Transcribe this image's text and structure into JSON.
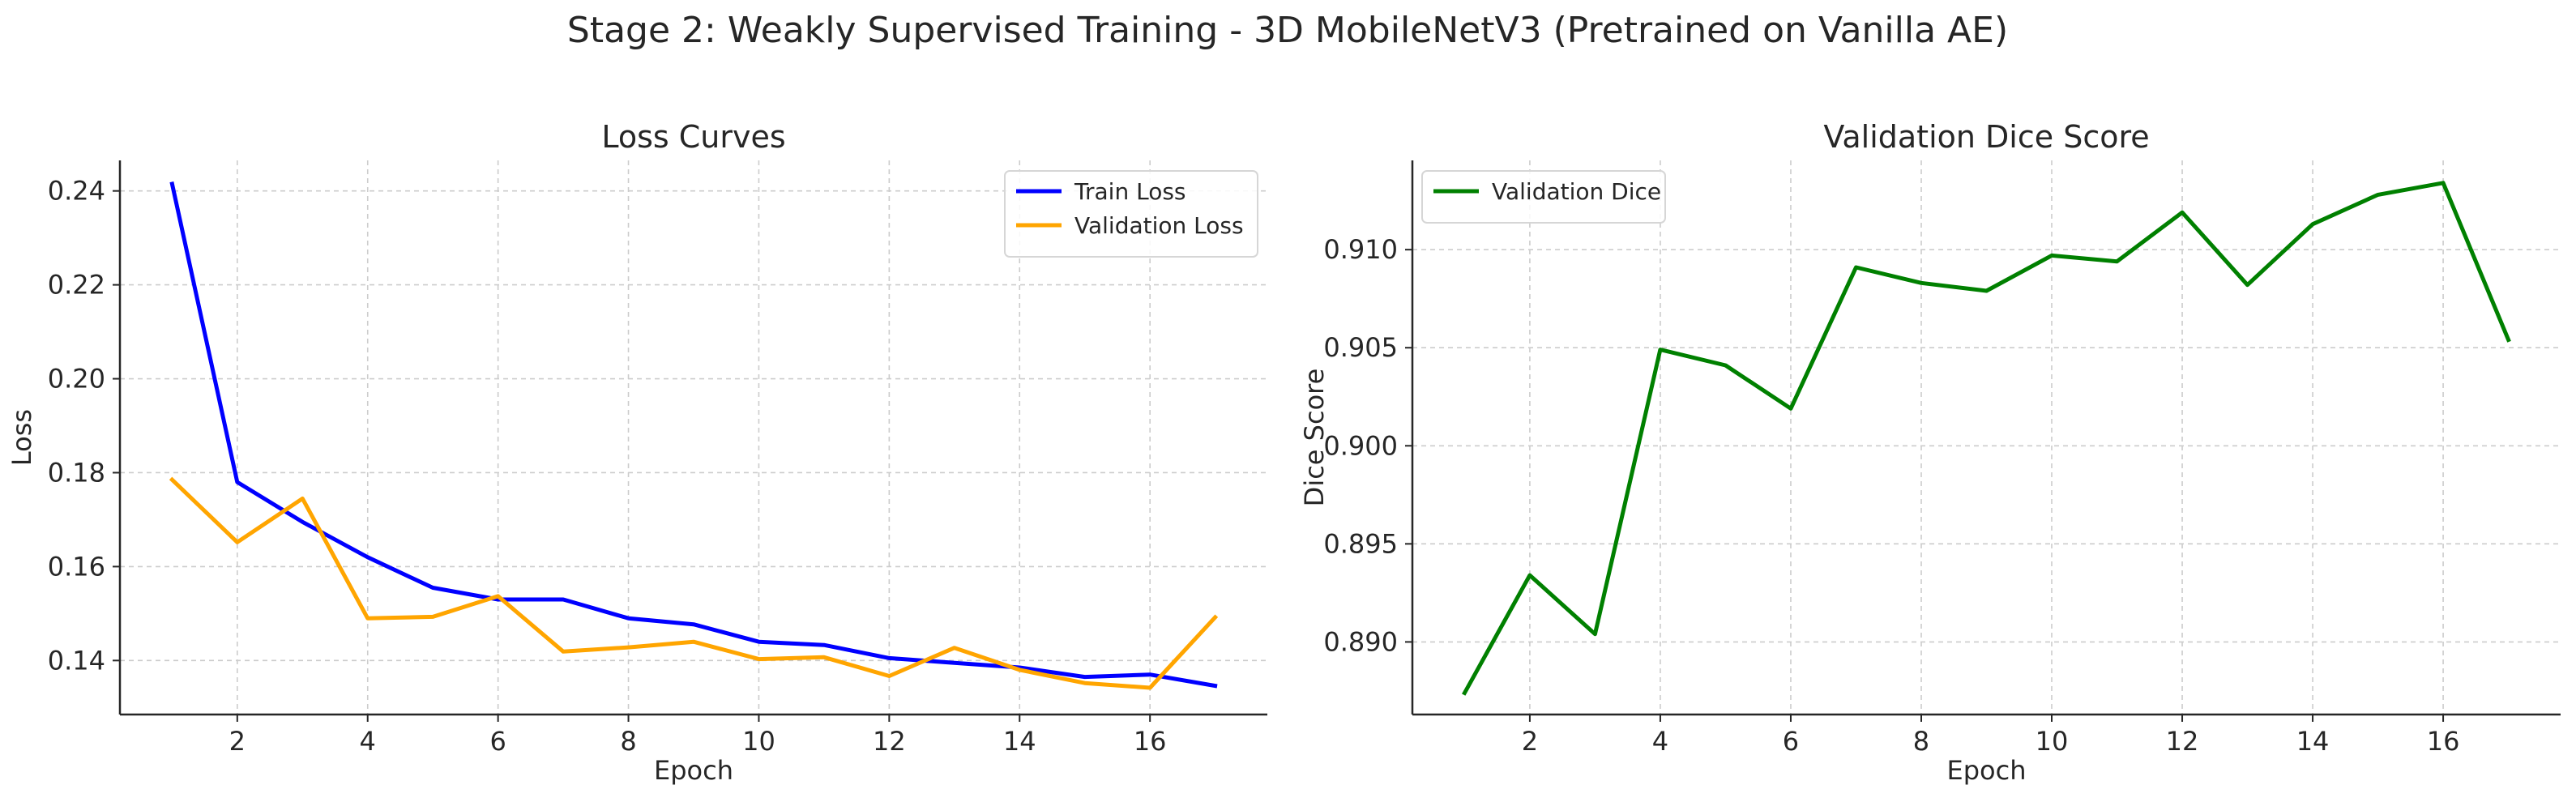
{
  "figure": {
    "title": "Stage 2: Weakly Supervised Training - 3D MobileNetV3 (Pretrained on Vanilla AE)"
  },
  "chart_data": [
    {
      "type": "line",
      "title": "Loss Curves",
      "xlabel": "Epoch",
      "ylabel": "Loss",
      "x": [
        1,
        2,
        3,
        4,
        5,
        6,
        7,
        8,
        9,
        10,
        11,
        12,
        13,
        14,
        15,
        16,
        17
      ],
      "xlim": [
        0.2,
        17.8
      ],
      "ylim": [
        0.1285,
        0.2465
      ],
      "xticks": [
        2,
        4,
        6,
        8,
        10,
        12,
        14,
        16
      ],
      "yticks": [
        0.14,
        0.16,
        0.18,
        0.2,
        0.22,
        0.24
      ],
      "ytick_labels": [
        "0.14",
        "0.16",
        "0.18",
        "0.20",
        "0.22",
        "0.24"
      ],
      "grid": true,
      "legend": "top-right",
      "series": [
        {
          "name": "Train Loss",
          "color": "#0000ff",
          "values": [
            0.2415,
            0.178,
            0.1695,
            0.162,
            0.1555,
            0.153,
            0.153,
            0.149,
            0.1477,
            0.144,
            0.1433,
            0.1405,
            0.1395,
            0.1385,
            0.1365,
            0.137,
            0.1346
          ]
        },
        {
          "name": "Validation Loss",
          "color": "#ffa500",
          "values": [
            0.1785,
            0.1652,
            0.1745,
            0.149,
            0.1493,
            0.1537,
            0.1419,
            0.1428,
            0.144,
            0.1403,
            0.1407,
            0.1367,
            0.1427,
            0.138,
            0.1352,
            0.1342,
            0.1492
          ]
        }
      ]
    },
    {
      "type": "line",
      "title": "Validation Dice Score",
      "xlabel": "Epoch",
      "ylabel": "Dice Score",
      "x": [
        1,
        2,
        3,
        4,
        5,
        6,
        7,
        8,
        9,
        10,
        11,
        12,
        13,
        14,
        15,
        16,
        17
      ],
      "xlim": [
        0.2,
        17.8
      ],
      "ylim": [
        0.8863,
        0.91455
      ],
      "xticks": [
        2,
        4,
        6,
        8,
        10,
        12,
        14,
        16
      ],
      "yticks": [
        0.89,
        0.895,
        0.9,
        0.905,
        0.91
      ],
      "ytick_labels": [
        "0.890",
        "0.895",
        "0.900",
        "0.905",
        "0.910"
      ],
      "grid": true,
      "legend": "top-left",
      "series": [
        {
          "name": "Validation Dice",
          "color": "#008000",
          "values": [
            0.8874,
            0.8934,
            0.8904,
            0.9049,
            0.9041,
            0.9019,
            0.9091,
            0.9083,
            0.9079,
            0.9097,
            0.9094,
            0.9119,
            0.9082,
            0.9113,
            0.9128,
            0.9134,
            0.9054
          ]
        }
      ]
    }
  ]
}
